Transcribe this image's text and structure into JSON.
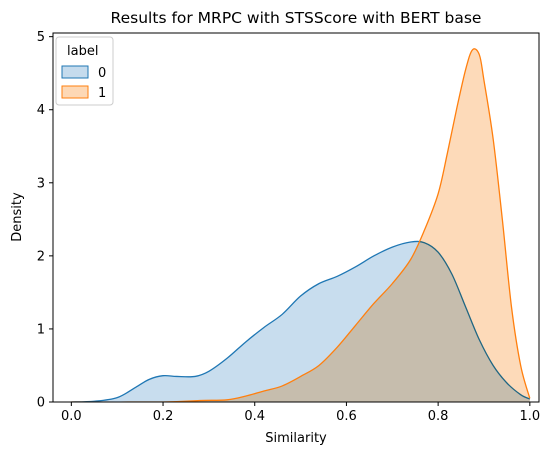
{
  "chart_data": {
    "type": "area",
    "title": "Results for MRPC with STSScore with BERT base",
    "xlabel": "Similarity",
    "ylabel": "Density",
    "xlim": [
      -0.04,
      1.02
    ],
    "ylim": [
      0,
      5.05
    ],
    "xticks": [
      "0.0",
      "0.2",
      "0.4",
      "0.6",
      "0.8",
      "1.0"
    ],
    "yticks": [
      "0",
      "1",
      "2",
      "3",
      "4",
      "5"
    ],
    "grid": false,
    "legend": {
      "title": "label",
      "placement": "top-left"
    },
    "series": [
      {
        "name": "0",
        "fill": "#c5dbed",
        "stroke": "#1f77b4",
        "points": [
          [
            0.0,
            0.0
          ],
          [
            0.05,
            0.01
          ],
          [
            0.1,
            0.06
          ],
          [
            0.14,
            0.2
          ],
          [
            0.17,
            0.31
          ],
          [
            0.2,
            0.36
          ],
          [
            0.23,
            0.35
          ],
          [
            0.27,
            0.35
          ],
          [
            0.3,
            0.42
          ],
          [
            0.34,
            0.6
          ],
          [
            0.38,
            0.82
          ],
          [
            0.42,
            1.02
          ],
          [
            0.46,
            1.2
          ],
          [
            0.5,
            1.45
          ],
          [
            0.54,
            1.62
          ],
          [
            0.58,
            1.72
          ],
          [
            0.62,
            1.85
          ],
          [
            0.66,
            2.0
          ],
          [
            0.7,
            2.12
          ],
          [
            0.74,
            2.19
          ],
          [
            0.77,
            2.18
          ],
          [
            0.8,
            2.05
          ],
          [
            0.83,
            1.75
          ],
          [
            0.86,
            1.3
          ],
          [
            0.89,
            0.85
          ],
          [
            0.92,
            0.5
          ],
          [
            0.95,
            0.26
          ],
          [
            0.98,
            0.1
          ],
          [
            1.0,
            0.04
          ]
        ]
      },
      {
        "name": "1",
        "fill": "#fdd8b5",
        "stroke": "#ff7f0e",
        "points": [
          [
            0.0,
            0.0
          ],
          [
            0.2,
            0.0
          ],
          [
            0.28,
            0.02
          ],
          [
            0.34,
            0.03
          ],
          [
            0.38,
            0.08
          ],
          [
            0.42,
            0.15
          ],
          [
            0.46,
            0.22
          ],
          [
            0.5,
            0.35
          ],
          [
            0.54,
            0.5
          ],
          [
            0.58,
            0.75
          ],
          [
            0.62,
            1.05
          ],
          [
            0.66,
            1.35
          ],
          [
            0.7,
            1.62
          ],
          [
            0.74,
            1.95
          ],
          [
            0.77,
            2.35
          ],
          [
            0.8,
            2.85
          ],
          [
            0.82,
            3.4
          ],
          [
            0.84,
            4.0
          ],
          [
            0.86,
            4.55
          ],
          [
            0.875,
            4.82
          ],
          [
            0.89,
            4.75
          ],
          [
            0.9,
            4.4
          ],
          [
            0.92,
            3.6
          ],
          [
            0.94,
            2.5
          ],
          [
            0.96,
            1.3
          ],
          [
            0.98,
            0.5
          ],
          [
            1.0,
            0.05
          ]
        ]
      }
    ]
  }
}
